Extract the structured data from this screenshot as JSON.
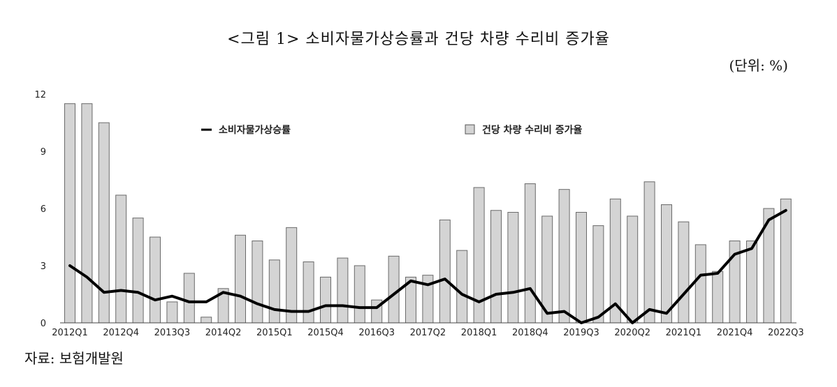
{
  "title": "<그림 1> 소비자물가상승률과 건당 차량 수리비 증가율",
  "unit": "(단위: %)",
  "source": "자료: 보험개발원",
  "chart_data": {
    "type": "bar",
    "title": "<그림 1> 소비자물가상승률과 건당 차량 수리비 증가율",
    "xlabel": "",
    "ylabel": "",
    "ylim": [
      0,
      12
    ],
    "yticks": [
      "0",
      "3",
      "6",
      "9",
      "12"
    ],
    "grid": false,
    "legend_position": "top",
    "categories": [
      "2012Q1",
      "2012Q2",
      "2012Q3",
      "2012Q4",
      "2013Q1",
      "2013Q2",
      "2013Q3",
      "2013Q4",
      "2014Q1",
      "2014Q2",
      "2014Q3",
      "2014Q4",
      "2015Q1",
      "2015Q2",
      "2015Q3",
      "2015Q4",
      "2016Q1",
      "2016Q2",
      "2016Q3",
      "2016Q4",
      "2017Q1",
      "2017Q2",
      "2017Q3",
      "2017Q4",
      "2018Q1",
      "2018Q2",
      "2018Q3",
      "2018Q4",
      "2019Q1",
      "2019Q2",
      "2019Q3",
      "2019Q4",
      "2020Q1",
      "2020Q2",
      "2020Q3",
      "2020Q4",
      "2021Q1",
      "2021Q2",
      "2021Q3",
      "2021Q4",
      "2022Q1",
      "2022Q2",
      "2022Q3"
    ],
    "xtick_labels": [
      "2012Q1",
      "2012Q4",
      "2013Q3",
      "2014Q2",
      "2015Q1",
      "2015Q4",
      "2016Q3",
      "2017Q2",
      "2018Q1",
      "2018Q4",
      "2019Q3",
      "2020Q2",
      "2021Q1",
      "2021Q4",
      "2022Q3"
    ],
    "series": [
      {
        "name": "건당 차량 수리비 증가율",
        "type": "bar",
        "color": "#d4d4d4",
        "values": [
          11.5,
          11.5,
          10.5,
          6.7,
          5.5,
          4.5,
          1.1,
          2.6,
          0.3,
          1.8,
          4.6,
          4.3,
          3.3,
          5.0,
          3.2,
          2.4,
          3.4,
          3.0,
          1.2,
          3.5,
          2.4,
          2.5,
          5.4,
          3.8,
          7.1,
          5.9,
          5.8,
          7.3,
          5.6,
          7.0,
          5.8,
          5.1,
          6.5,
          5.6,
          7.4,
          6.2,
          5.3,
          4.1,
          2.7,
          4.3,
          4.3,
          6.0,
          6.5
        ]
      },
      {
        "name": "소비자물가상승률",
        "type": "line",
        "color": "#000000",
        "values": [
          3.0,
          2.4,
          1.6,
          1.7,
          1.6,
          1.2,
          1.4,
          1.1,
          1.1,
          1.6,
          1.4,
          1.0,
          0.7,
          0.6,
          0.6,
          0.9,
          0.9,
          0.8,
          0.8,
          1.5,
          2.2,
          2.0,
          2.3,
          1.5,
          1.1,
          1.5,
          1.6,
          1.8,
          0.5,
          0.6,
          0.0,
          0.3,
          1.0,
          0.0,
          0.7,
          0.5,
          1.5,
          2.5,
          2.6,
          3.6,
          3.9,
          5.4,
          5.9
        ]
      }
    ]
  }
}
